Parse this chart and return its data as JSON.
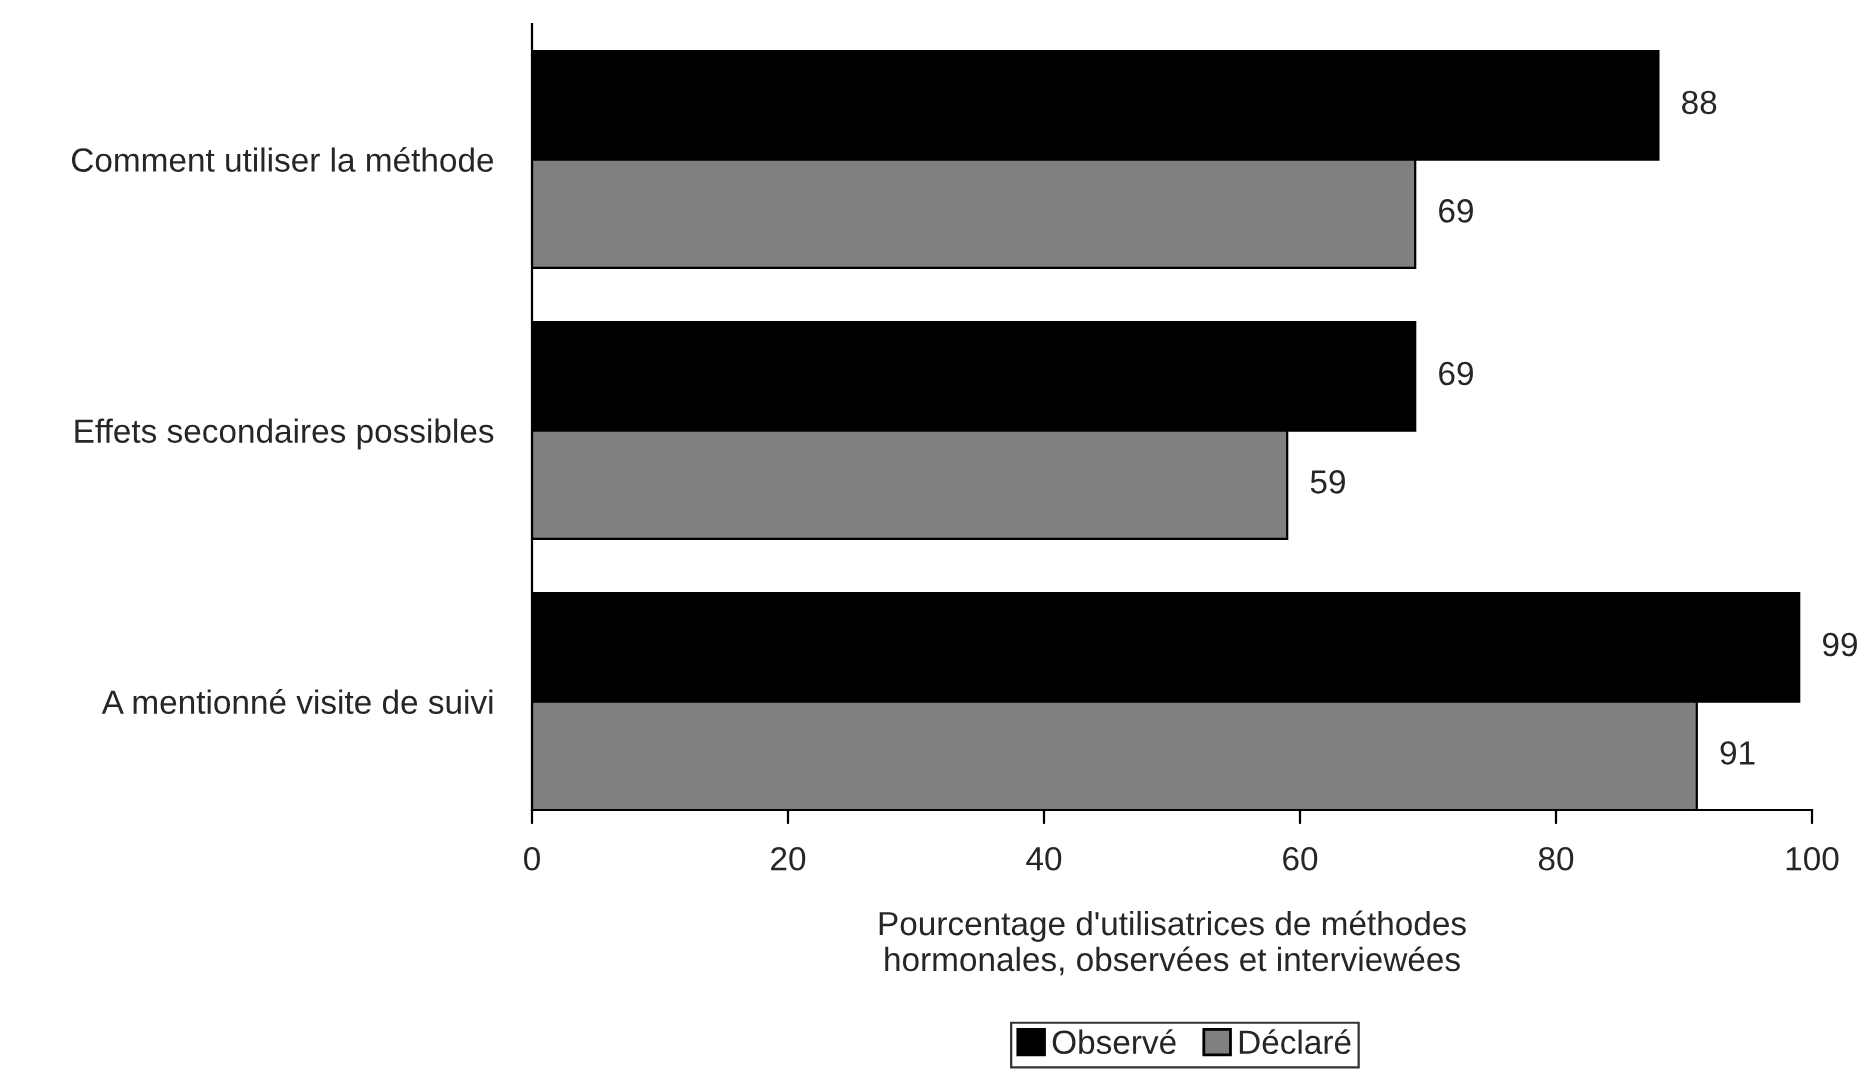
{
  "chart_data": {
    "type": "bar",
    "orientation": "horizontal",
    "categories": [
      "Comment utiliser la méthode",
      "Effets secondaires possibles",
      "A mentionné visite de suivi"
    ],
    "series": [
      {
        "name": "Observé",
        "color": "#000000",
        "values": [
          88,
          69,
          99
        ]
      },
      {
        "name": "Déclaré",
        "color": "#808080",
        "values": [
          69,
          59,
          91
        ]
      }
    ],
    "xlabel": "Pourcentage d'utilisatrices de méthodes\nhormonales, observées et interviewées",
    "xlim": [
      0,
      100
    ],
    "xticks": [
      0,
      20,
      40,
      60,
      80,
      100
    ],
    "data_labels": true,
    "grid": false,
    "legend": "bottom"
  }
}
